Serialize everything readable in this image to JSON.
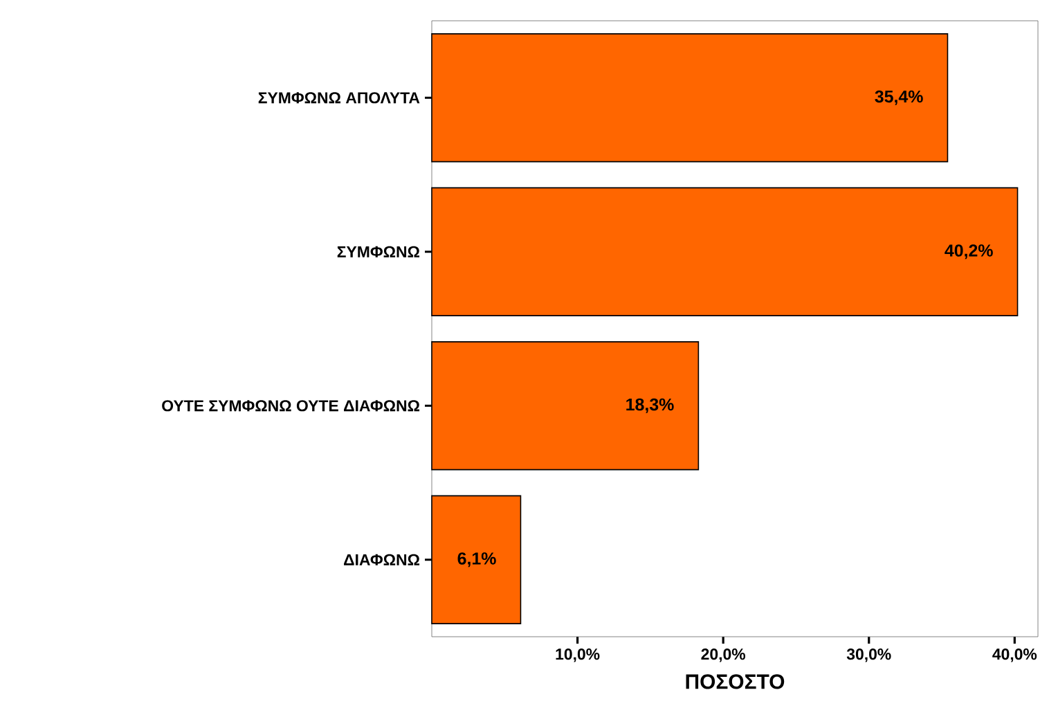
{
  "chart_data": {
    "type": "bar",
    "orientation": "horizontal",
    "xlabel": "ΠΟΣΟΣΤΟ",
    "categories": [
      "ΣΥΜΦΩΝΩ ΑΠΟΛΥΤΑ",
      "ΣΥΜΦΩΝΩ",
      "ΟΥΤΕ ΣΥΜΦΩΝΩ ΟΥΤΕ ΔΙΑΦΩΝΩ",
      "ΔΙΑΦΩΝΩ"
    ],
    "values": [
      35.4,
      40.2,
      18.3,
      6.1
    ],
    "value_labels": [
      "35,4%",
      "40,2%",
      "18,3%",
      "6,1%"
    ],
    "color": "#ff6600",
    "xlim": [
      0,
      41.6
    ],
    "xticks": [
      {
        "value": 10,
        "label": "10,0%"
      },
      {
        "value": 20,
        "label": "20,0%"
      },
      {
        "value": 30,
        "label": "30,0%"
      },
      {
        "value": 40,
        "label": "40,0%"
      }
    ],
    "grid": false
  }
}
